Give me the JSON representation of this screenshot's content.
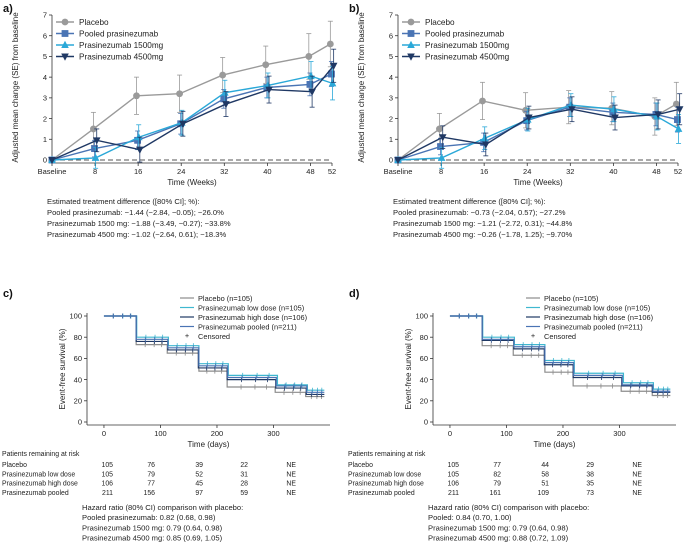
{
  "chart_data": [
    {
      "panel": "a)",
      "type": "line",
      "title": "",
      "xlabel": "Time (Weeks)",
      "ylabel": "Adjusted mean change (SE) from baseline",
      "x_tick_labels": [
        "Baseline",
        "8",
        "16",
        "24",
        "32",
        "40",
        "48",
        "52"
      ],
      "x": [
        0,
        8,
        16,
        24,
        32,
        40,
        48,
        52
      ],
      "xlim": [
        0,
        52
      ],
      "ylim": [
        0,
        7
      ],
      "y_ticks": [
        0,
        1,
        2,
        3,
        4,
        5,
        6,
        7
      ],
      "legend": "top-left",
      "series": [
        {
          "name": "Placebo",
          "color": "#9a9a9a",
          "marker": "circle",
          "values": [
            0,
            1.5,
            3.1,
            3.2,
            4.1,
            4.6,
            5.0,
            5.6
          ],
          "se": [
            0,
            0.8,
            0.9,
            0.9,
            0.85,
            0.9,
            1.1,
            1.1
          ]
        },
        {
          "name": "Pooled prasinezumab",
          "color": "#4a74b4",
          "marker": "square",
          "values": [
            0,
            0.55,
            0.95,
            1.75,
            2.95,
            3.5,
            3.65,
            4.15
          ],
          "se": [
            0,
            0.4,
            0.45,
            0.5,
            0.45,
            0.5,
            0.55,
            0.6
          ]
        },
        {
          "name": "Prasinezumab 1500mg",
          "color": "#2aa8d8",
          "marker": "triangle-up",
          "values": [
            0,
            0.1,
            1.1,
            1.8,
            3.25,
            3.6,
            4.05,
            3.7
          ],
          "se": [
            0,
            0.5,
            0.6,
            0.6,
            0.6,
            0.6,
            0.7,
            0.8
          ]
        },
        {
          "name": "Prasinezumab 4500mg",
          "color": "#1f3864",
          "marker": "triangle-down",
          "values": [
            0,
            0.95,
            0.5,
            1.75,
            2.7,
            3.4,
            3.3,
            4.55
          ],
          "se": [
            0,
            0.55,
            0.6,
            0.6,
            0.6,
            0.65,
            0.75,
            0.8
          ]
        }
      ],
      "baseline_dashed": 0,
      "notes": [
        "Estimated treatment difference ([80% CI]; %):",
        "Pooled prasinezumab: −1.44 (−2.84, −0.05); −26.0%",
        "Prasinezumab 1500 mg: −1.88 (−3.49, −0.27); −33.8%",
        "Prasinezumab 4500 mg: −1.02 (−2.64, 0.61); −18.3%"
      ]
    },
    {
      "panel": "b)",
      "type": "line",
      "title": "",
      "xlabel": "Time (Weeks)",
      "ylabel": "Adjusted mean change (SE) from baseline",
      "x_tick_labels": [
        "Baseline",
        "8",
        "16",
        "24",
        "32",
        "40",
        "48",
        "52"
      ],
      "x": [
        0,
        8,
        16,
        24,
        32,
        40,
        48,
        52
      ],
      "xlim": [
        0,
        52
      ],
      "ylim": [
        0,
        7
      ],
      "y_ticks": [
        0,
        1,
        2,
        3,
        4,
        5,
        6,
        7
      ],
      "legend": "top-left",
      "series": [
        {
          "name": "Placebo",
          "color": "#9a9a9a",
          "marker": "circle",
          "values": [
            0,
            1.5,
            2.85,
            2.4,
            2.55,
            2.5,
            2.1,
            2.7
          ],
          "se": [
            0,
            0.75,
            0.9,
            0.85,
            0.8,
            0.8,
            0.9,
            1.05
          ]
        },
        {
          "name": "Pooled prasinezumab",
          "color": "#4a74b4",
          "marker": "square",
          "values": [
            0,
            0.65,
            0.85,
            1.9,
            2.55,
            2.3,
            2.2,
            1.95
          ],
          "se": [
            0,
            0.4,
            0.45,
            0.45,
            0.45,
            0.45,
            0.55,
            0.6
          ]
        },
        {
          "name": "Prasinezumab 1500mg",
          "color": "#2aa8d8",
          "marker": "triangle-up",
          "values": [
            0,
            0.1,
            1.05,
            1.95,
            2.65,
            2.45,
            2.1,
            1.5
          ],
          "se": [
            0,
            0.5,
            0.55,
            0.55,
            0.55,
            0.6,
            0.65,
            0.7
          ]
        },
        {
          "name": "Prasinezumab 4500mg",
          "color": "#1f3864",
          "marker": "triangle-down",
          "values": [
            0,
            1.1,
            0.75,
            2.05,
            2.45,
            2.05,
            2.2,
            2.45
          ],
          "se": [
            0,
            0.55,
            0.55,
            0.55,
            0.6,
            0.6,
            0.7,
            0.75
          ]
        }
      ],
      "baseline_dashed": 0,
      "notes": [
        "Estimated treatment difference ([80% CI]; %):",
        "Pooled prasinezumab: −0.73 (−2.04, 0.57); −27.2%",
        "Prasinezumab 1500 mg: −1.21 (−2.72, 0.31); −44.8%",
        "Prasinezumab 4500 mg: −0.26 (−1.78, 1.25); −9.70%"
      ]
    },
    {
      "panel": "c)",
      "type": "line",
      "subtype": "kaplan-meier",
      "title": "",
      "xlabel": "Time (days)",
      "ylabel": "Event-free survival (%)",
      "x_ticks": [
        0,
        100,
        200,
        300
      ],
      "xlim": [
        -30,
        400
      ],
      "ylim": [
        0,
        100
      ],
      "y_ticks": [
        0,
        20,
        40,
        60,
        80,
        100
      ],
      "legend": "top-right",
      "censored_label": "Censored",
      "series": [
        {
          "name": "Placebo (n=105)",
          "color": "#8c8c8c",
          "steps": [
            [
              0,
              100
            ],
            [
              55,
              100
            ],
            [
              57,
              73
            ],
            [
              110,
              73
            ],
            [
              112,
              65
            ],
            [
              165,
              65
            ],
            [
              168,
              48
            ],
            [
              215,
              48
            ],
            [
              218,
              33
            ],
            [
              300,
              33
            ],
            [
              303,
              28
            ],
            [
              355,
              28
            ],
            [
              357,
              24
            ],
            [
              390,
              24
            ]
          ]
        },
        {
          "name": "Prasinezumab low dose (n=105)",
          "color": "#3fb8d0",
          "steps": [
            [
              0,
              100
            ],
            [
              56,
              100
            ],
            [
              58,
              80
            ],
            [
              112,
              80
            ],
            [
              114,
              72
            ],
            [
              166,
              72
            ],
            [
              168,
              55
            ],
            [
              218,
              55
            ],
            [
              220,
              44
            ],
            [
              305,
              44
            ],
            [
              307,
              35
            ],
            [
              358,
              35
            ],
            [
              360,
              30
            ],
            [
              390,
              30
            ]
          ]
        },
        {
          "name": "Prasinezumab high dose (n=106)",
          "color": "#1f3864",
          "steps": [
            [
              0,
              100
            ],
            [
              55,
              100
            ],
            [
              57,
              76
            ],
            [
              111,
              76
            ],
            [
              113,
              68
            ],
            [
              165,
              68
            ],
            [
              167,
              51
            ],
            [
              216,
              51
            ],
            [
              218,
              40
            ],
            [
              302,
              40
            ],
            [
              304,
              32
            ],
            [
              356,
              32
            ],
            [
              358,
              26
            ],
            [
              390,
              26
            ]
          ]
        },
        {
          "name": "Prasinezumab pooled (n=211)",
          "color": "#4a74b4",
          "steps": [
            [
              0,
              100
            ],
            [
              55,
              100
            ],
            [
              57,
              78
            ],
            [
              111,
              78
            ],
            [
              113,
              70
            ],
            [
              166,
              70
            ],
            [
              168,
              53
            ],
            [
              217,
              53
            ],
            [
              219,
              42
            ],
            [
              303,
              42
            ],
            [
              305,
              34
            ],
            [
              357,
              34
            ],
            [
              359,
              28
            ],
            [
              390,
              28
            ]
          ]
        }
      ],
      "risk_table": {
        "header": "Patients remaining at risk",
        "rows": [
          {
            "label": "Placebo",
            "values": [
              "105",
              "76",
              "39",
              "22",
              "NE"
            ]
          },
          {
            "label": "Prasinezumab low dose",
            "values": [
              "105",
              "79",
              "52",
              "31",
              "NE"
            ]
          },
          {
            "label": "Prasinezumab high dose",
            "values": [
              "106",
              "77",
              "45",
              "28",
              "NE"
            ]
          },
          {
            "label": "Prasinezumab pooled",
            "values": [
              "211",
              "156",
              "97",
              "59",
              "NE"
            ]
          }
        ]
      },
      "notes": [
        "Hazard ratio (80% CI) comparison with placebo:",
        "Pooled prasinezumab: 0.82 (0.68, 0.98)",
        "Prasinezumab 1500 mg: 0.79 (0.64, 0.98)",
        "Prasinezumab 4500 mg: 0.85 (0.69, 1.05)"
      ]
    },
    {
      "panel": "d)",
      "type": "line",
      "subtype": "kaplan-meier",
      "title": "",
      "xlabel": "Time (days)",
      "ylabel": "Event-free survival (%)",
      "x_ticks": [
        0,
        100,
        200,
        300
      ],
      "xlim": [
        -30,
        400
      ],
      "ylim": [
        0,
        100
      ],
      "y_ticks": [
        0,
        20,
        40,
        60,
        80,
        100
      ],
      "legend": "top-right",
      "censored_label": "Censored",
      "series": [
        {
          "name": "Placebo (n=105)",
          "color": "#8c8c8c",
          "steps": [
            [
              0,
              100
            ],
            [
              55,
              100
            ],
            [
              57,
              72
            ],
            [
              110,
              72
            ],
            [
              112,
              63
            ],
            [
              165,
              63
            ],
            [
              168,
              47
            ],
            [
              216,
              47
            ],
            [
              218,
              34
            ],
            [
              300,
              34
            ],
            [
              303,
              29
            ],
            [
              356,
              29
            ],
            [
              358,
              25
            ],
            [
              390,
              25
            ]
          ]
        },
        {
          "name": "Prasinezumab low dose (n=105)",
          "color": "#3fb8d0",
          "steps": [
            [
              0,
              100
            ],
            [
              56,
              100
            ],
            [
              58,
              80
            ],
            [
              112,
              80
            ],
            [
              114,
              73
            ],
            [
              166,
              73
            ],
            [
              168,
              58
            ],
            [
              218,
              58
            ],
            [
              220,
              46
            ],
            [
              305,
              46
            ],
            [
              307,
              37
            ],
            [
              358,
              37
            ],
            [
              360,
              31
            ],
            [
              390,
              31
            ]
          ]
        },
        {
          "name": "Prasinezumab high dose (n=106)",
          "color": "#1f3864",
          "steps": [
            [
              0,
              100
            ],
            [
              55,
              100
            ],
            [
              57,
              77
            ],
            [
              111,
              77
            ],
            [
              113,
              69
            ],
            [
              165,
              69
            ],
            [
              167,
              54
            ],
            [
              216,
              54
            ],
            [
              218,
              42
            ],
            [
              302,
              42
            ],
            [
              304,
              34
            ],
            [
              356,
              34
            ],
            [
              358,
              28
            ],
            [
              390,
              28
            ]
          ]
        },
        {
          "name": "Prasinezumab pooled (n=211)",
          "color": "#4a74b4",
          "steps": [
            [
              0,
              100
            ],
            [
              55,
              100
            ],
            [
              57,
              78
            ],
            [
              111,
              78
            ],
            [
              113,
              71
            ],
            [
              166,
              71
            ],
            [
              168,
              56
            ],
            [
              217,
              56
            ],
            [
              219,
              44
            ],
            [
              303,
              44
            ],
            [
              305,
              35
            ],
            [
              357,
              35
            ],
            [
              359,
              29
            ],
            [
              390,
              29
            ]
          ]
        }
      ],
      "risk_table": {
        "header": "Patients remaining at risk",
        "rows": [
          {
            "label": "Placebo",
            "values": [
              "105",
              "77",
              "44",
              "29",
              "NE"
            ]
          },
          {
            "label": "Prasinezumab low dose",
            "values": [
              "105",
              "82",
              "58",
              "38",
              "NE"
            ]
          },
          {
            "label": "Prasinezumab high dose",
            "values": [
              "106",
              "79",
              "51",
              "35",
              "NE"
            ]
          },
          {
            "label": "Prasinezumab pooled",
            "values": [
              "211",
              "161",
              "109",
              "73",
              "NE"
            ]
          }
        ]
      },
      "notes": [
        "Hazard ratio (80% CI) comparison with placebo:",
        "Pooled: 0.84 (0.70, 1.00)",
        "Prasinezumab 1500 mg: 0.79 (0.64, 0.98)",
        "Prasinezumab 4500 mg: 0.88 (0.72, 1.09)"
      ]
    }
  ]
}
